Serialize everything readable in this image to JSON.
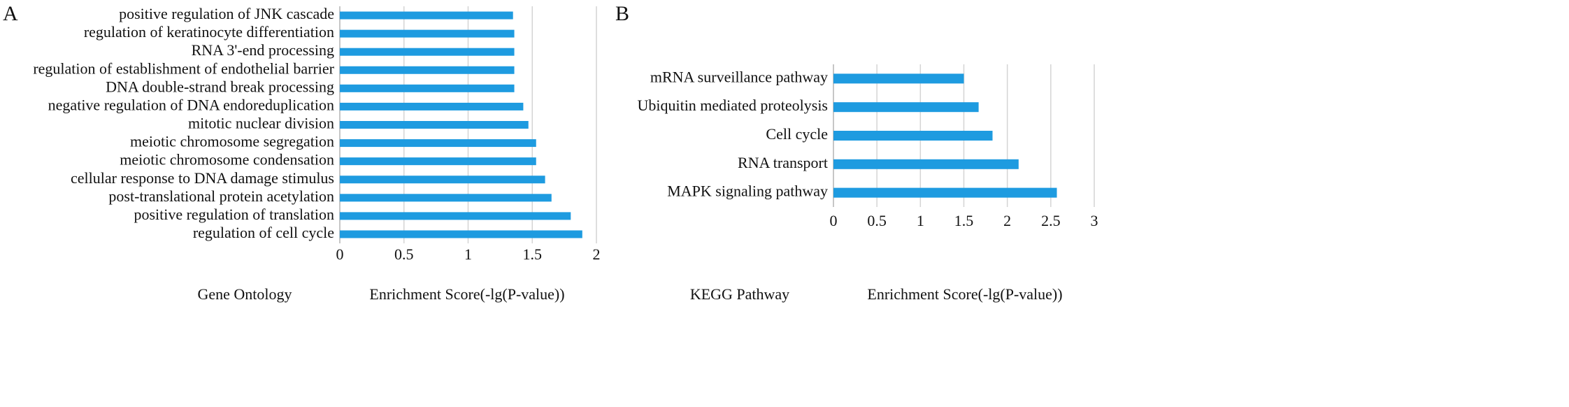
{
  "chart_data": [
    {
      "type": "bar",
      "orientation": "horizontal",
      "panel": "A",
      "category_axis_label": "Gene Ontology",
      "xlabel": "Enrichment Score(-lg(P-value))",
      "categories": [
        "positive regulation of JNK cascade",
        "regulation of keratinocyte differentiation",
        "RNA 3'-end processing",
        "regulation of establishment of endothelial barrier",
        "DNA double-strand break processing",
        "negative regulation of DNA endoreduplication",
        "mitotic nuclear division",
        "meiotic chromosome segregation",
        "meiotic chromosome condensation",
        "cellular response to DNA damage stimulus",
        "post-translational protein acetylation",
        "positive regulation of translation",
        "regulation of cell cycle"
      ],
      "values": [
        1.35,
        1.36,
        1.36,
        1.36,
        1.36,
        1.43,
        1.47,
        1.53,
        1.53,
        1.6,
        1.65,
        1.8,
        1.89
      ],
      "color": "#1e9be0",
      "xlim": [
        0,
        2
      ],
      "xticks": [
        0,
        0.5,
        1,
        1.5,
        2
      ],
      "grid": true
    },
    {
      "type": "bar",
      "orientation": "horizontal",
      "panel": "B",
      "category_axis_label": "KEGG Pathway",
      "xlabel": "Enrichment Score(-lg(P-value))",
      "categories": [
        "mRNA surveillance pathway",
        "Ubiquitin mediated proteolysis",
        "Cell cycle",
        "RNA transport",
        "MAPK signaling pathway"
      ],
      "values": [
        1.5,
        1.67,
        1.83,
        2.13,
        2.57
      ],
      "color": "#1e9be0",
      "xlim": [
        0,
        3
      ],
      "xticks": [
        0,
        0.5,
        1,
        1.5,
        2,
        2.5,
        3
      ],
      "grid": true
    }
  ]
}
